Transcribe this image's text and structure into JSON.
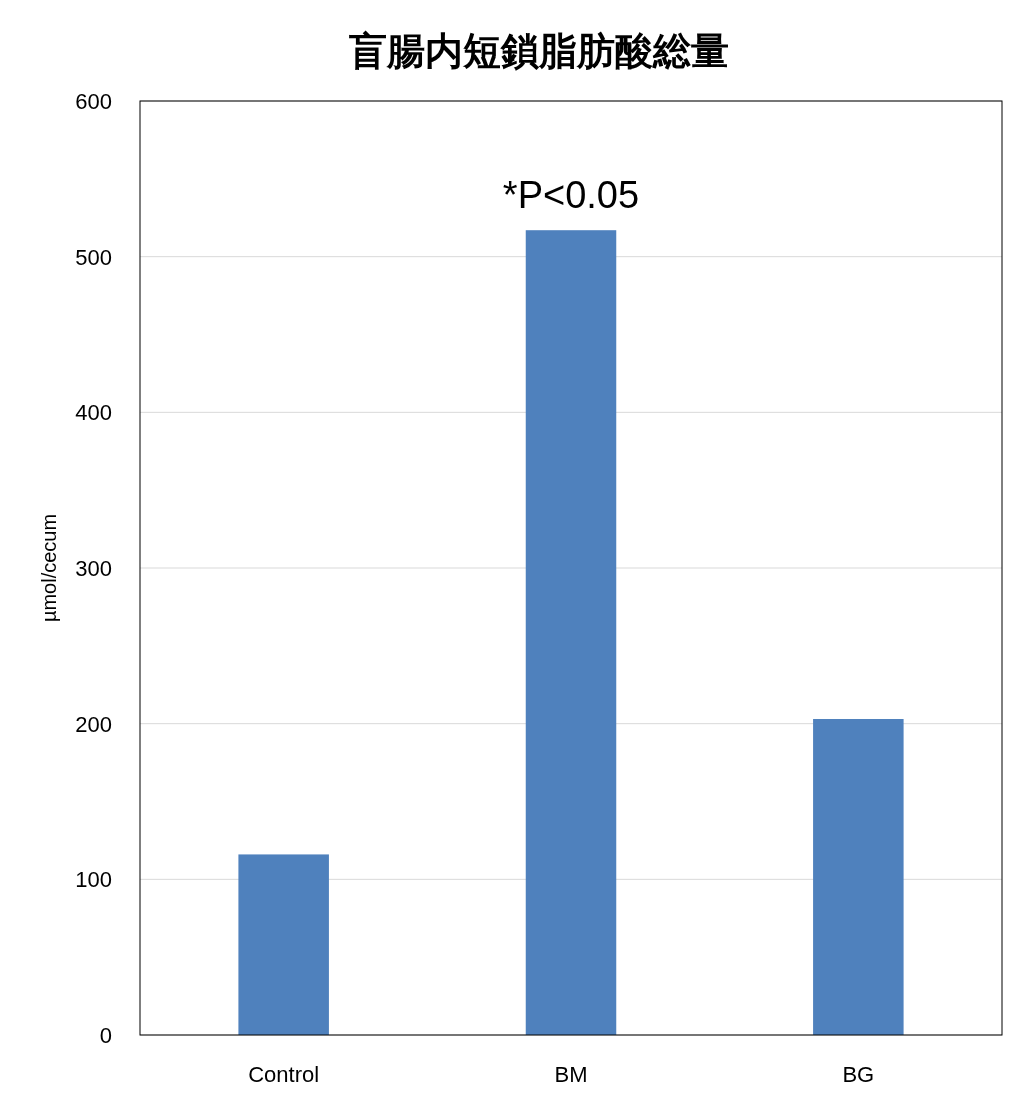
{
  "chart_data": {
    "type": "bar",
    "title": "盲腸内短鎖脂肪酸総量",
    "ylabel": "µmol/cecum",
    "categories": [
      "Control",
      "BM",
      "BG"
    ],
    "values": [
      116,
      517,
      203
    ],
    "color": "#4f81bd",
    "ylim": [
      0,
      600
    ],
    "yticks": [
      0,
      100,
      200,
      300,
      400,
      500,
      600
    ],
    "grid": "y",
    "annotations": [
      {
        "text": "*P<0.05",
        "x": "BM",
        "y": 517
      }
    ]
  }
}
